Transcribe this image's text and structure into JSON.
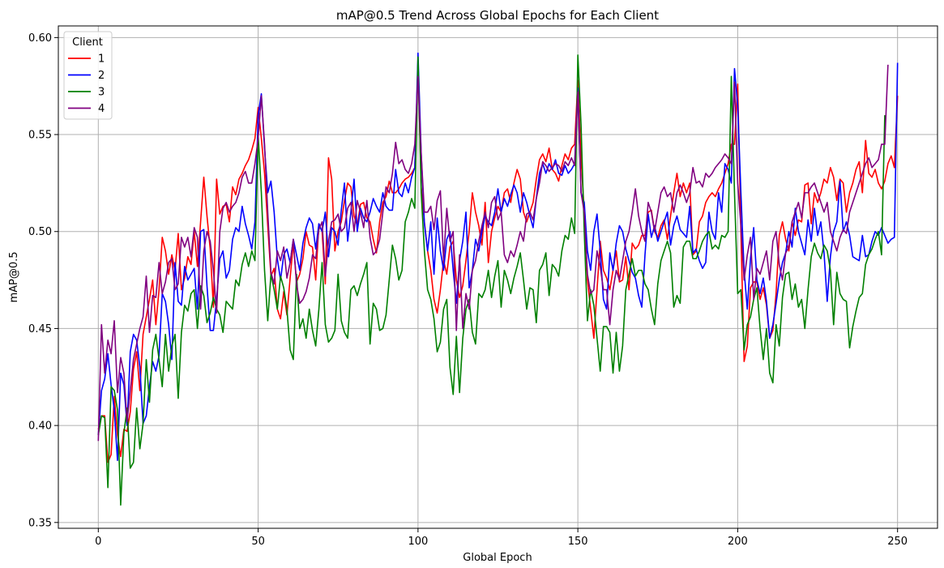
{
  "chart_data": {
    "type": "line",
    "title": "mAP@0.5 Trend Across Global Epochs for Each Client",
    "xlabel": "Global Epoch",
    "ylabel": "mAP@0.5",
    "xlim": [
      -12.5,
      262.5
    ],
    "ylim": [
      0.347,
      0.606
    ],
    "xticks": [
      0,
      50,
      100,
      150,
      200,
      250
    ],
    "yticks": [
      0.35,
      0.4,
      0.45,
      0.5,
      0.55,
      0.6
    ],
    "ytick_labels": [
      "0.35",
      "0.40",
      "0.45",
      "0.50",
      "0.55",
      "0.60"
    ],
    "grid": true,
    "legend": {
      "title": "Client",
      "position": "top-left"
    },
    "x_start": 0,
    "x_step": 1,
    "series": [
      {
        "name": "1",
        "color": "#ff0000",
        "values": [
          0.398,
          0.405,
          0.405,
          0.381,
          0.385,
          0.415,
          0.395,
          0.384,
          0.398,
          0.397,
          0.407,
          0.429,
          0.438,
          0.418,
          0.447,
          0.456,
          0.465,
          0.475,
          0.452,
          0.47,
          0.497,
          0.49,
          0.478,
          0.488,
          0.48,
          0.499,
          0.47,
          0.476,
          0.487,
          0.483,
          0.5,
          0.482,
          0.505,
          0.528,
          0.508,
          0.491,
          0.461,
          0.527,
          0.509,
          0.513,
          0.514,
          0.505,
          0.523,
          0.519,
          0.527,
          0.53,
          0.534,
          0.537,
          0.542,
          0.548,
          0.564,
          0.548,
          0.53,
          0.503,
          0.477,
          0.481,
          0.46,
          0.455,
          0.469,
          0.457,
          0.476,
          0.494,
          0.474,
          0.478,
          0.486,
          0.5,
          0.493,
          0.492,
          0.475,
          0.504,
          0.5,
          0.473,
          0.538,
          0.527,
          0.49,
          0.5,
          0.505,
          0.516,
          0.525,
          0.523,
          0.508,
          0.503,
          0.514,
          0.515,
          0.507,
          0.505,
          0.496,
          0.489,
          0.505,
          0.515,
          0.518,
          0.526,
          0.52,
          0.52,
          0.522,
          0.525,
          0.527,
          0.528,
          0.53,
          0.533,
          0.588,
          0.523,
          0.505,
          0.49,
          0.48,
          0.465,
          0.458,
          0.47,
          0.485,
          0.478,
          0.492,
          0.495,
          0.475,
          0.466,
          0.472,
          0.485,
          0.5,
          0.52,
          0.51,
          0.503,
          0.493,
          0.515,
          0.484,
          0.5,
          0.507,
          0.513,
          0.51,
          0.52,
          0.522,
          0.515,
          0.525,
          0.532,
          0.527,
          0.51,
          0.505,
          0.51,
          0.515,
          0.527,
          0.537,
          0.54,
          0.536,
          0.543,
          0.532,
          0.53,
          0.526,
          0.534,
          0.54,
          0.537,
          0.543,
          0.545,
          0.578,
          0.538,
          0.51,
          0.475,
          0.46,
          0.445,
          0.47,
          0.495,
          0.48,
          0.476,
          0.47,
          0.48,
          0.49,
          0.474,
          0.475,
          0.487,
          0.47,
          0.494,
          0.491,
          0.493,
          0.498,
          0.498,
          0.51,
          0.511,
          0.5,
          0.497,
          0.503,
          0.506,
          0.496,
          0.508,
          0.52,
          0.53,
          0.518,
          0.525,
          0.52,
          0.525,
          0.488,
          0.49,
          0.505,
          0.508,
          0.515,
          0.518,
          0.52,
          0.518,
          0.522,
          0.525,
          0.53,
          0.535,
          0.545,
          0.545,
          0.576,
          0.5,
          0.433,
          0.441,
          0.471,
          0.474,
          0.474,
          0.465,
          0.471,
          0.462,
          0.445,
          0.449,
          0.468,
          0.498,
          0.505,
          0.496,
          0.49,
          0.505,
          0.498,
          0.506,
          0.505,
          0.524,
          0.525,
          0.504,
          0.52,
          0.515,
          0.52,
          0.527,
          0.525,
          0.533,
          0.528,
          0.516,
          0.527,
          0.525,
          0.51,
          0.52,
          0.525,
          0.532,
          0.536,
          0.52,
          0.547,
          0.53,
          0.528,
          0.532,
          0.525,
          0.522,
          0.526,
          0.535,
          0.539,
          0.533,
          0.57
        ]
      },
      {
        "name": "2",
        "color": "#0000ff",
        "values": [
          0.395,
          0.418,
          0.424,
          0.437,
          0.421,
          0.408,
          0.382,
          0.427,
          0.421,
          0.4,
          0.438,
          0.447,
          0.444,
          0.43,
          0.401,
          0.405,
          0.42,
          0.433,
          0.428,
          0.436,
          0.468,
          0.464,
          0.452,
          0.434,
          0.484,
          0.464,
          0.462,
          0.482,
          0.475,
          0.478,
          0.481,
          0.46,
          0.5,
          0.501,
          0.472,
          0.449,
          0.449,
          0.465,
          0.486,
          0.49,
          0.476,
          0.48,
          0.496,
          0.502,
          0.5,
          0.513,
          0.504,
          0.498,
          0.491,
          0.505,
          0.56,
          0.571,
          0.543,
          0.52,
          0.526,
          0.51,
          0.486,
          0.475,
          0.488,
          0.491,
          0.484,
          0.496,
          0.488,
          0.48,
          0.494,
          0.502,
          0.507,
          0.504,
          0.491,
          0.504,
          0.5,
          0.51,
          0.487,
          0.502,
          0.5,
          0.493,
          0.511,
          0.525,
          0.495,
          0.51,
          0.527,
          0.5,
          0.512,
          0.507,
          0.505,
          0.51,
          0.517,
          0.513,
          0.51,
          0.52,
          0.513,
          0.511,
          0.511,
          0.532,
          0.52,
          0.518,
          0.525,
          0.52,
          0.528,
          0.533,
          0.592,
          0.54,
          0.504,
          0.49,
          0.505,
          0.478,
          0.507,
          0.49,
          0.48,
          0.496,
          0.5,
          0.48,
          0.463,
          0.485,
          0.495,
          0.51,
          0.471,
          0.48,
          0.496,
          0.49,
          0.5,
          0.508,
          0.505,
          0.503,
          0.51,
          0.522,
          0.51,
          0.517,
          0.513,
          0.519,
          0.524,
          0.52,
          0.51,
          0.52,
          0.515,
          0.508,
          0.502,
          0.517,
          0.53,
          0.535,
          0.53,
          0.535,
          0.532,
          0.537,
          0.53,
          0.529,
          0.534,
          0.53,
          0.532,
          0.535,
          0.574,
          0.52,
          0.515,
          0.49,
          0.48,
          0.5,
          0.509,
          0.49,
          0.465,
          0.46,
          0.489,
          0.48,
          0.494,
          0.503,
          0.5,
          0.491,
          0.485,
          0.479,
          0.476,
          0.467,
          0.461,
          0.488,
          0.509,
          0.497,
          0.503,
          0.495,
          0.5,
          0.505,
          0.51,
          0.493,
          0.503,
          0.508,
          0.501,
          0.499,
          0.497,
          0.513,
          0.489,
          0.491,
          0.485,
          0.481,
          0.484,
          0.51,
          0.5,
          0.496,
          0.52,
          0.51,
          0.535,
          0.532,
          0.525,
          0.584,
          0.565,
          0.52,
          0.48,
          0.46,
          0.486,
          0.502,
          0.475,
          0.468,
          0.476,
          0.464,
          0.445,
          0.452,
          0.463,
          0.475,
          0.484,
          0.489,
          0.5,
          0.492,
          0.512,
          0.5,
          0.494,
          0.488,
          0.506,
          0.495,
          0.512,
          0.498,
          0.505,
          0.489,
          0.464,
          0.487,
          0.5,
          0.505,
          0.526,
          0.5,
          0.505,
          0.498,
          0.487,
          0.486,
          0.485,
          0.498,
          0.487,
          0.488,
          0.495,
          0.5,
          0.498,
          0.502,
          0.498,
          0.494,
          0.496,
          0.497,
          0.587
        ]
      },
      {
        "name": "3",
        "color": "#008000",
        "values": [
          0.395,
          0.405,
          0.404,
          0.368,
          0.42,
          0.418,
          0.408,
          0.359,
          0.396,
          0.409,
          0.378,
          0.381,
          0.409,
          0.388,
          0.401,
          0.434,
          0.412,
          0.439,
          0.447,
          0.434,
          0.42,
          0.447,
          0.428,
          0.441,
          0.447,
          0.414,
          0.448,
          0.462,
          0.459,
          0.468,
          0.47,
          0.45,
          0.472,
          0.467,
          0.453,
          0.458,
          0.466,
          0.46,
          0.457,
          0.448,
          0.464,
          0.462,
          0.46,
          0.475,
          0.472,
          0.483,
          0.489,
          0.482,
          0.49,
          0.485,
          0.55,
          0.52,
          0.48,
          0.454,
          0.478,
          0.47,
          0.46,
          0.477,
          0.471,
          0.46,
          0.439,
          0.434,
          0.478,
          0.45,
          0.455,
          0.445,
          0.46,
          0.449,
          0.441,
          0.46,
          0.484,
          0.452,
          0.443,
          0.445,
          0.449,
          0.478,
          0.454,
          0.448,
          0.445,
          0.47,
          0.472,
          0.467,
          0.473,
          0.478,
          0.484,
          0.442,
          0.463,
          0.46,
          0.449,
          0.45,
          0.457,
          0.475,
          0.493,
          0.486,
          0.475,
          0.48,
          0.505,
          0.51,
          0.517,
          0.512,
          0.59,
          0.52,
          0.49,
          0.47,
          0.465,
          0.455,
          0.438,
          0.443,
          0.46,
          0.465,
          0.43,
          0.416,
          0.446,
          0.417,
          0.445,
          0.46,
          0.465,
          0.448,
          0.442,
          0.468,
          0.466,
          0.47,
          0.48,
          0.466,
          0.477,
          0.485,
          0.461,
          0.48,
          0.475,
          0.468,
          0.476,
          0.482,
          0.489,
          0.475,
          0.46,
          0.471,
          0.47,
          0.453,
          0.48,
          0.483,
          0.489,
          0.467,
          0.483,
          0.481,
          0.477,
          0.49,
          0.498,
          0.496,
          0.507,
          0.499,
          0.591,
          0.555,
          0.5,
          0.454,
          0.47,
          0.462,
          0.445,
          0.428,
          0.451,
          0.451,
          0.448,
          0.427,
          0.448,
          0.428,
          0.441,
          0.47,
          0.478,
          0.486,
          0.477,
          0.48,
          0.48,
          0.473,
          0.47,
          0.46,
          0.452,
          0.473,
          0.485,
          0.49,
          0.495,
          0.489,
          0.461,
          0.467,
          0.463,
          0.492,
          0.495,
          0.495,
          0.486,
          0.486,
          0.49,
          0.495,
          0.498,
          0.5,
          0.491,
          0.493,
          0.491,
          0.498,
          0.497,
          0.5,
          0.58,
          0.52,
          0.468,
          0.47,
          0.439,
          0.452,
          0.456,
          0.465,
          0.471,
          0.45,
          0.434,
          0.45,
          0.427,
          0.422,
          0.452,
          0.441,
          0.466,
          0.478,
          0.479,
          0.465,
          0.473,
          0.461,
          0.465,
          0.45,
          0.47,
          0.487,
          0.494,
          0.489,
          0.486,
          0.493,
          0.49,
          0.48,
          0.452,
          0.479,
          0.468,
          0.465,
          0.464,
          0.44,
          0.451,
          0.459,
          0.466,
          0.468,
          0.483,
          0.488,
          0.491,
          0.496,
          0.5,
          0.488,
          0.56
        ]
      },
      {
        "name": "4",
        "color": "#800080",
        "values": [
          0.392,
          0.452,
          0.427,
          0.444,
          0.437,
          0.454,
          0.417,
          0.435,
          0.427,
          0.402,
          0.418,
          0.434,
          0.442,
          0.45,
          0.456,
          0.477,
          0.448,
          0.467,
          0.466,
          0.484,
          0.468,
          0.474,
          0.484,
          0.486,
          0.47,
          0.473,
          0.497,
          0.492,
          0.497,
          0.487,
          0.502,
          0.497,
          0.46,
          0.49,
          0.5,
          0.495,
          0.48,
          0.458,
          0.5,
          0.512,
          0.515,
          0.51,
          0.513,
          0.515,
          0.52,
          0.528,
          0.531,
          0.525,
          0.525,
          0.535,
          0.548,
          0.57,
          0.545,
          0.51,
          0.479,
          0.473,
          0.49,
          0.485,
          0.492,
          0.476,
          0.484,
          0.496,
          0.473,
          0.463,
          0.465,
          0.469,
          0.476,
          0.488,
          0.486,
          0.501,
          0.505,
          0.477,
          0.495,
          0.505,
          0.506,
          0.509,
          0.5,
          0.502,
          0.512,
          0.515,
          0.5,
          0.516,
          0.51,
          0.502,
          0.516,
          0.497,
          0.488,
          0.49,
          0.496,
          0.51,
          0.523,
          0.52,
          0.53,
          0.546,
          0.535,
          0.537,
          0.532,
          0.53,
          0.535,
          0.545,
          0.58,
          0.54,
          0.51,
          0.51,
          0.513,
          0.501,
          0.516,
          0.521,
          0.485,
          0.512,
          0.495,
          0.5,
          0.449,
          0.488,
          0.45,
          0.468,
          0.46,
          0.48,
          0.485,
          0.495,
          0.503,
          0.51,
          0.502,
          0.515,
          0.518,
          0.506,
          0.51,
          0.488,
          0.484,
          0.49,
          0.487,
          0.493,
          0.5,
          0.495,
          0.509,
          0.51,
          0.506,
          0.517,
          0.525,
          0.536,
          0.534,
          0.531,
          0.533,
          0.535,
          0.534,
          0.531,
          0.536,
          0.534,
          0.538,
          0.534,
          0.572,
          0.52,
          0.51,
          0.478,
          0.468,
          0.47,
          0.49,
          0.482,
          0.47,
          0.47,
          0.452,
          0.47,
          0.48,
          0.475,
          0.485,
          0.495,
          0.5,
          0.51,
          0.522,
          0.508,
          0.5,
          0.495,
          0.515,
          0.51,
          0.5,
          0.51,
          0.52,
          0.523,
          0.518,
          0.52,
          0.51,
          0.52,
          0.524,
          0.52,
          0.515,
          0.52,
          0.533,
          0.525,
          0.526,
          0.523,
          0.53,
          0.528,
          0.53,
          0.533,
          0.535,
          0.537,
          0.54,
          0.538,
          0.535,
          0.577,
          0.525,
          0.503,
          0.475,
          0.488,
          0.497,
          0.465,
          0.481,
          0.478,
          0.484,
          0.49,
          0.475,
          0.495,
          0.5,
          0.483,
          0.475,
          0.489,
          0.492,
          0.505,
          0.51,
          0.515,
          0.507,
          0.52,
          0.52,
          0.523,
          0.525,
          0.52,
          0.515,
          0.51,
          0.515,
          0.5,
          0.495,
          0.49,
          0.497,
          0.501,
          0.499,
          0.51,
          0.515,
          0.52,
          0.525,
          0.53,
          0.535,
          0.538,
          0.533,
          0.535,
          0.537,
          0.545,
          0.545,
          0.586
        ]
      }
    ]
  }
}
